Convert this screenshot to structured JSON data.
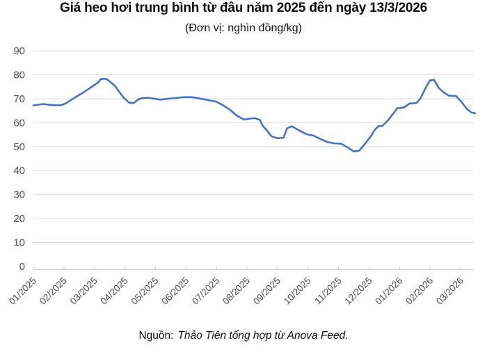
{
  "header": {
    "title": "Giá heo hơi trung bình từ đâu năm 2025 đến ngày 13/3/2026",
    "subtitle": "(Đơn vị: nghìn đồng/kg)"
  },
  "footer": {
    "source_label": "Nguồn:",
    "source_text": "Thảo Tiên tổng hợp từ Anova Feed."
  },
  "colors": {
    "line": "#4472C4",
    "grid": "#dcdcdc",
    "axis": "#c9c9c9",
    "tick": "#c9c9c9",
    "label": "#4d4d4d"
  },
  "chart_data": {
    "type": "line",
    "title": "Giá heo hơi trung bình từ đâu năm 2025 đến ngày 13/3/2026",
    "subtitle": "(Đơn vị: nghìn đồng/kg)",
    "unit": "nghìn đồng/kg",
    "xlabel": "",
    "ylabel": "",
    "grid": "horizontal",
    "legend": "none",
    "ylim": [
      0,
      90
    ],
    "y_ticks": [
      0,
      10,
      20,
      30,
      40,
      50,
      60,
      70,
      80,
      90
    ],
    "x_tick_labels": [
      "01/2025",
      "02/2025",
      "03/2025",
      "04/2025",
      "05/2025",
      "06/2025",
      "07/2025",
      "08/2025",
      "09/2025",
      "10/2025",
      "11/2025",
      "12/2025",
      "01/2026",
      "02/2026",
      "03/2026"
    ],
    "x_unit": "month_index (0 = 01/2025)",
    "xlim_months": [
      0,
      14.5
    ],
    "series": [
      {
        "name": "Giá heo hơi",
        "points": [
          [
            0.0,
            67.2
          ],
          [
            0.32,
            67.8
          ],
          [
            0.62,
            67.3
          ],
          [
            0.91,
            67.3
          ],
          [
            1.07,
            68.1
          ],
          [
            1.35,
            70.4
          ],
          [
            1.64,
            72.6
          ],
          [
            1.94,
            75.2
          ],
          [
            2.12,
            76.8
          ],
          [
            2.22,
            78.3
          ],
          [
            2.4,
            78.2
          ],
          [
            2.53,
            76.9
          ],
          [
            2.67,
            75.4
          ],
          [
            2.83,
            72.6
          ],
          [
            2.97,
            70.3
          ],
          [
            3.13,
            68.4
          ],
          [
            3.29,
            68.2
          ],
          [
            3.44,
            69.7
          ],
          [
            3.58,
            70.3
          ],
          [
            3.77,
            70.4
          ],
          [
            4.16,
            69.6
          ],
          [
            4.5,
            70.1
          ],
          [
            4.95,
            70.7
          ],
          [
            5.23,
            70.6
          ],
          [
            5.53,
            69.9
          ],
          [
            5.75,
            69.4
          ],
          [
            5.98,
            68.8
          ],
          [
            6.21,
            67.3
          ],
          [
            6.44,
            65.4
          ],
          [
            6.67,
            62.9
          ],
          [
            6.9,
            61.3
          ],
          [
            7.08,
            61.7
          ],
          [
            7.26,
            61.9
          ],
          [
            7.42,
            61.2
          ],
          [
            7.51,
            58.8
          ],
          [
            7.65,
            56.8
          ],
          [
            7.81,
            54.3
          ],
          [
            7.99,
            53.5
          ],
          [
            8.2,
            53.7
          ],
          [
            8.31,
            57.6
          ],
          [
            8.47,
            58.5
          ],
          [
            8.72,
            56.7
          ],
          [
            8.95,
            55.2
          ],
          [
            9.18,
            54.6
          ],
          [
            9.41,
            53.2
          ],
          [
            9.63,
            51.9
          ],
          [
            9.86,
            51.4
          ],
          [
            10.09,
            51.2
          ],
          [
            10.32,
            49.5
          ],
          [
            10.5,
            48.0
          ],
          [
            10.68,
            48.3
          ],
          [
            10.9,
            51.7
          ],
          [
            11.08,
            54.7
          ],
          [
            11.19,
            57.1
          ],
          [
            11.31,
            58.5
          ],
          [
            11.44,
            58.7
          ],
          [
            11.62,
            61.0
          ],
          [
            11.8,
            63.9
          ],
          [
            11.92,
            66.0
          ],
          [
            12.15,
            66.4
          ],
          [
            12.33,
            68.0
          ],
          [
            12.56,
            68.2
          ],
          [
            12.69,
            70.2
          ],
          [
            12.85,
            74.4
          ],
          [
            12.99,
            77.6
          ],
          [
            13.13,
            77.9
          ],
          [
            13.29,
            74.4
          ],
          [
            13.45,
            72.6
          ],
          [
            13.61,
            71.3
          ],
          [
            13.86,
            71.1
          ],
          [
            14.04,
            68.5
          ],
          [
            14.2,
            65.8
          ],
          [
            14.35,
            64.3
          ],
          [
            14.48,
            63.9
          ]
        ]
      }
    ]
  }
}
